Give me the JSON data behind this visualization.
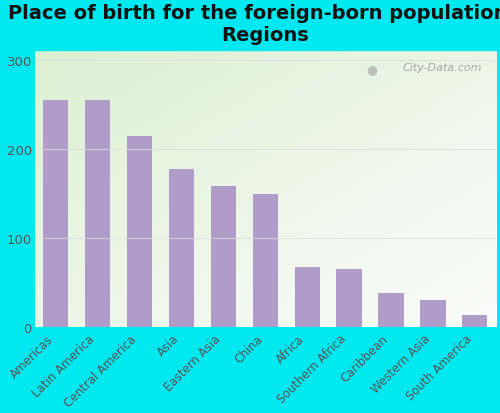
{
  "title": "Place of birth for the foreign-born population -\nRegions",
  "categories": [
    "Americas",
    "Latin America",
    "Central America",
    "Asia",
    "Eastern Asia",
    "China",
    "Africa",
    "Southern Africa",
    "Caribbean",
    "Western Asia",
    "South America"
  ],
  "values": [
    255,
    255,
    215,
    178,
    158,
    150,
    68,
    65,
    38,
    30,
    13
  ],
  "bar_color": "#b09cc8",
  "outer_bg_color": "#00e8f0",
  "plot_bg_color_topleft": "#e8f5e0",
  "plot_bg_color_bottomright": "#f8f8f0",
  "ylim": [
    0,
    310
  ],
  "yticks": [
    0,
    100,
    200,
    300
  ],
  "title_fontsize": 14,
  "tick_label_fontsize": 8.5,
  "watermark_text": "City-Data.com"
}
